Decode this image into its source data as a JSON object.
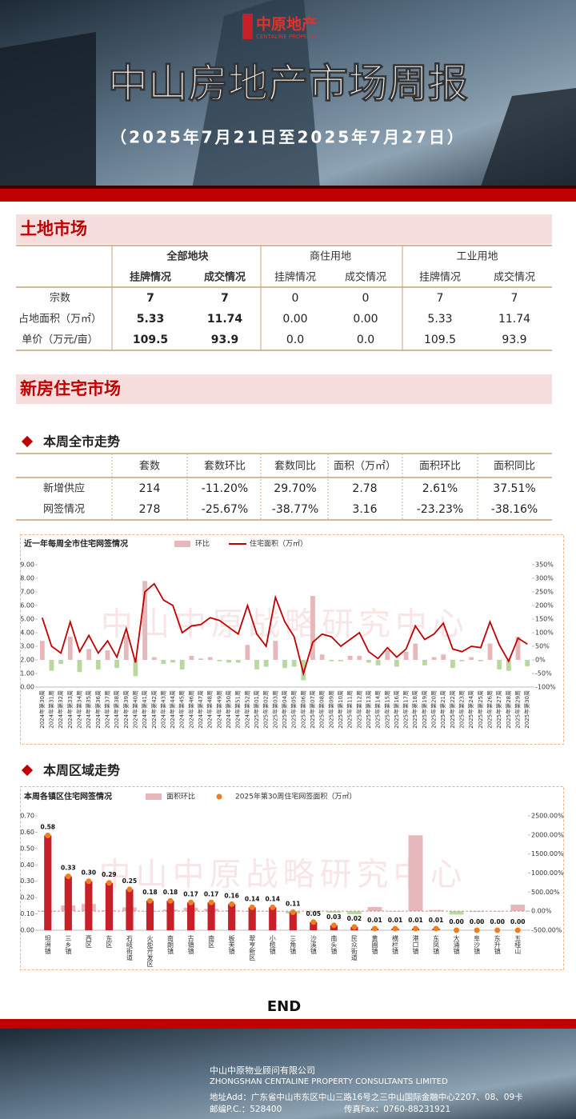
{
  "header": {
    "logo": "中原地产",
    "logo_en": "CENTALINE PROPERTY",
    "title": "中山房地产市场周报",
    "subtitle": "（2025年7月21日至2025年7月27日）"
  },
  "land": {
    "title": "土地市场",
    "groups": [
      "全部地块",
      "商住用地",
      "工业用地"
    ],
    "subheaders": [
      "挂牌情况",
      "成交情况",
      "挂牌情况",
      "成交情况",
      "挂牌情况",
      "成交情况"
    ],
    "rows": [
      {
        "label": "宗数",
        "cells": [
          "7",
          "7",
          "0",
          "0",
          "7",
          "7"
        ]
      },
      {
        "label": "占地面积（万㎡）",
        "cells": [
          "5.33",
          "11.74",
          "0.00",
          "0.00",
          "5.33",
          "11.74"
        ]
      },
      {
        "label": "单价（万元/亩）",
        "cells": [
          "109.5",
          "93.9",
          "0.0",
          "0.0",
          "109.5",
          "93.9"
        ]
      }
    ]
  },
  "new_home": {
    "title": "新房住宅市场",
    "subtitle": "本周全市走势",
    "headers": [
      "套数",
      "套数环比",
      "套数同比",
      "面积（万㎡）",
      "面积环比",
      "面积同比"
    ],
    "rows": [
      {
        "label": "新增供应",
        "cells": [
          "214",
          "-11.20%",
          "29.70%",
          "2.78",
          "2.61%",
          "37.51%"
        ]
      },
      {
        "label": "网签情况",
        "cells": [
          "278",
          "-25.67%",
          "-38.77%",
          "3.16",
          "-23.23%",
          "-38.16%"
        ]
      }
    ]
  },
  "region_subtitle": "本周区域走势",
  "chart_data": [
    {
      "type": "combo",
      "title": "近一年每周全市住宅网签情况",
      "watermark": "中山中原战略研究中心",
      "categories": [
        "2024年第30周",
        "2024年第31周",
        "2024年第32周",
        "2024年第33周",
        "2024年第34周",
        "2024年第35周",
        "2024年第36周",
        "2024年第37周",
        "2024年第38周",
        "2024年第39周",
        "2024年第40周",
        "2024年第41周",
        "2024年第42周",
        "2024年第43周",
        "2024年第44周",
        "2024年第45周",
        "2024年第46周",
        "2024年第47周",
        "2024年第48周",
        "2024年第49周",
        "2024年第50周",
        "2024年第51周",
        "2024年第52周",
        "2025年第01周",
        "2025年第02周",
        "2025年第03周",
        "2025年第04周",
        "2025年第05周",
        "2025年第06周",
        "2025年第07周",
        "2025年第08周",
        "2025年第09周",
        "2025年第10周",
        "2025年第11周",
        "2025年第12周",
        "2025年第13周",
        "2025年第14周",
        "2025年第15周",
        "2025年第16周",
        "2025年第17周",
        "2025年第18周",
        "2025年第19周",
        "2025年第20周",
        "2025年第21周",
        "2025年第22周",
        "2025年第23周",
        "2025年第24周",
        "2025年第25周",
        "2025年第26周",
        "2025年第27周",
        "2025年第28周",
        "2025年第29周",
        "2025年第30周"
      ],
      "series": [
        {
          "name": "环比",
          "kind": "bar",
          "axis": "y2",
          "color": "#e6b8bb",
          "negative_color": "#b9d8a0",
          "values": [
            70,
            -40,
            -15,
            85,
            -45,
            40,
            -35,
            35,
            -30,
            90,
            -60,
            290,
            10,
            -15,
            -10,
            -35,
            15,
            5,
            10,
            -5,
            -10,
            -10,
            55,
            -35,
            -25,
            70,
            -30,
            -25,
            -75,
            235,
            20,
            -5,
            -5,
            15,
            15,
            -10,
            -20,
            35,
            -25,
            30,
            60,
            -20,
            10,
            20,
            -30,
            -5,
            10,
            -5,
            60,
            -35,
            -40,
            85,
            -23.23
          ]
        },
        {
          "name": "住宅面积（万㎡）",
          "kind": "line",
          "color": "#c00000",
          "values": [
            5.1,
            3.0,
            2.5,
            4.8,
            2.6,
            3.8,
            2.5,
            3.4,
            2.2,
            4.3,
            1.8,
            7.0,
            7.6,
            6.4,
            6.0,
            4.0,
            4.5,
            4.6,
            5.1,
            4.9,
            4.4,
            3.9,
            6.0,
            3.9,
            3.0,
            6.6,
            4.8,
            3.7,
            1.0,
            3.3,
            3.9,
            3.7,
            3.0,
            3.5,
            4.0,
            2.6,
            2.1,
            2.9,
            2.2,
            2.8,
            4.5,
            3.5,
            3.9,
            4.7,
            2.8,
            2.6,
            3.0,
            2.9,
            4.8,
            3.1,
            1.9,
            3.6,
            3.16
          ]
        }
      ],
      "ylim": [
        0,
        9
      ],
      "yticks": [
        {
          "value": 0,
          "label": "0.00"
        },
        {
          "value": 1,
          "label": "1.00"
        },
        {
          "value": 2,
          "label": "2.00"
        },
        {
          "value": 3,
          "label": "3.00"
        },
        {
          "value": 4,
          "label": "4.00"
        },
        {
          "value": 5,
          "label": "5.00"
        },
        {
          "value": 6,
          "label": "6.00"
        },
        {
          "value": 7,
          "label": "7.00"
        },
        {
          "value": 8,
          "label": "8.00"
        },
        {
          "value": 9,
          "label": "9.00"
        }
      ],
      "y2lim": [
        -100,
        350
      ],
      "y2ticks": [
        {
          "value": -100,
          "label": "-100%"
        },
        {
          "value": -50,
          "label": "-50%"
        },
        {
          "value": 0,
          "label": "0%"
        },
        {
          "value": 50,
          "label": "50%"
        },
        {
          "value": 100,
          "label": "100%"
        },
        {
          "value": 150,
          "label": "150%"
        },
        {
          "value": 200,
          "label": "200%"
        },
        {
          "value": 250,
          "label": "250%"
        },
        {
          "value": 300,
          "label": "300%"
        },
        {
          "value": 350,
          "label": "350%"
        }
      ]
    },
    {
      "type": "combo",
      "title": "本周各镇区住宅网签情况",
      "watermark": "中山中原战略研究中心",
      "categories": [
        "坦洲镇",
        "三乡镇",
        "西区",
        "东区",
        "石岐街道",
        "火炬开发区",
        "南朗镇",
        "古镇镇",
        "南区",
        "板芙镇",
        "翠亨新区",
        "小榄镇",
        "三角镇",
        "沙溪镇",
        "南头镇",
        "民众街道",
        "黄圃镇",
        "横栏镇",
        "港口镇",
        "东凤镇",
        "大涌镇",
        "阜沙镇",
        "东升镇",
        "五桂山"
      ],
      "series": [
        {
          "name": "面积环比",
          "kind": "bar",
          "axis": "y2",
          "color": "#e6b8bb",
          "negative_color": "#b9d8a0",
          "values": [
            -20,
            150,
            190,
            20,
            100,
            -10,
            40,
            90,
            60,
            20,
            -5,
            -15,
            -60,
            -30,
            -40,
            -80,
            110,
            -10,
            1990,
            30,
            -90,
            -20,
            -10,
            170
          ]
        },
        {
          "name": "2025年第30周住宅网签面积（万㎡）",
          "kind": "column",
          "color": "#c8202a",
          "marker_color": "#f07d1e",
          "values": [
            0.58,
            0.33,
            0.3,
            0.29,
            0.25,
            0.18,
            0.18,
            0.17,
            0.17,
            0.16,
            0.14,
            0.14,
            0.11,
            0.05,
            0.03,
            0.02,
            0.01,
            0.01,
            0.01,
            0.01,
            0,
            0,
            0,
            0
          ],
          "value_labels": [
            "0.58",
            "0.33",
            "0.30",
            "0.29",
            "0.25",
            "0.18",
            "0.18",
            "0.17",
            "0.17",
            "0.16",
            "0.14",
            "0.14",
            "0.11",
            "0.05",
            "0.03",
            "0.02",
            "0.01",
            "0.01",
            "0.01",
            "0.01",
            "0.00",
            "0.00",
            "0.00",
            "0.00"
          ]
        }
      ],
      "ylim": [
        0,
        0.7
      ],
      "yticks": [
        {
          "value": 0,
          "label": "0.00"
        },
        {
          "value": 0.1,
          "label": "0.10"
        },
        {
          "value": 0.2,
          "label": "0.20"
        },
        {
          "value": 0.3,
          "label": "0.30"
        },
        {
          "value": 0.4,
          "label": "0.40"
        },
        {
          "value": 0.5,
          "label": "0.50"
        },
        {
          "value": 0.6,
          "label": "0.60"
        },
        {
          "value": 0.7,
          "label": "0.70"
        }
      ],
      "y2lim": [
        -500,
        2500
      ],
      "y2ticks": [
        {
          "value": -500,
          "label": "-500.00%"
        },
        {
          "value": 0,
          "label": "0.00%"
        },
        {
          "value": 500,
          "label": "500.00%"
        },
        {
          "value": 1000,
          "label": "1000.00%"
        },
        {
          "value": 1500,
          "label": "1500.00%"
        },
        {
          "value": 2000,
          "label": "2000.00%"
        },
        {
          "value": 2500,
          "label": "2500.00%"
        }
      ]
    }
  ],
  "end": "END",
  "footer": {
    "company": "中山中原物业顾问有限公司",
    "company_en": "ZHONGSHAN CENTALINE PROPERTY CONSULTANTS LIMITED",
    "address": "地址Add：广东省中山市东区中山三路16号之三中山国际金融中心2207、08、09卡",
    "postcode": "邮编P.C.：528400",
    "fax": "传真Fax：0760-88231921"
  }
}
